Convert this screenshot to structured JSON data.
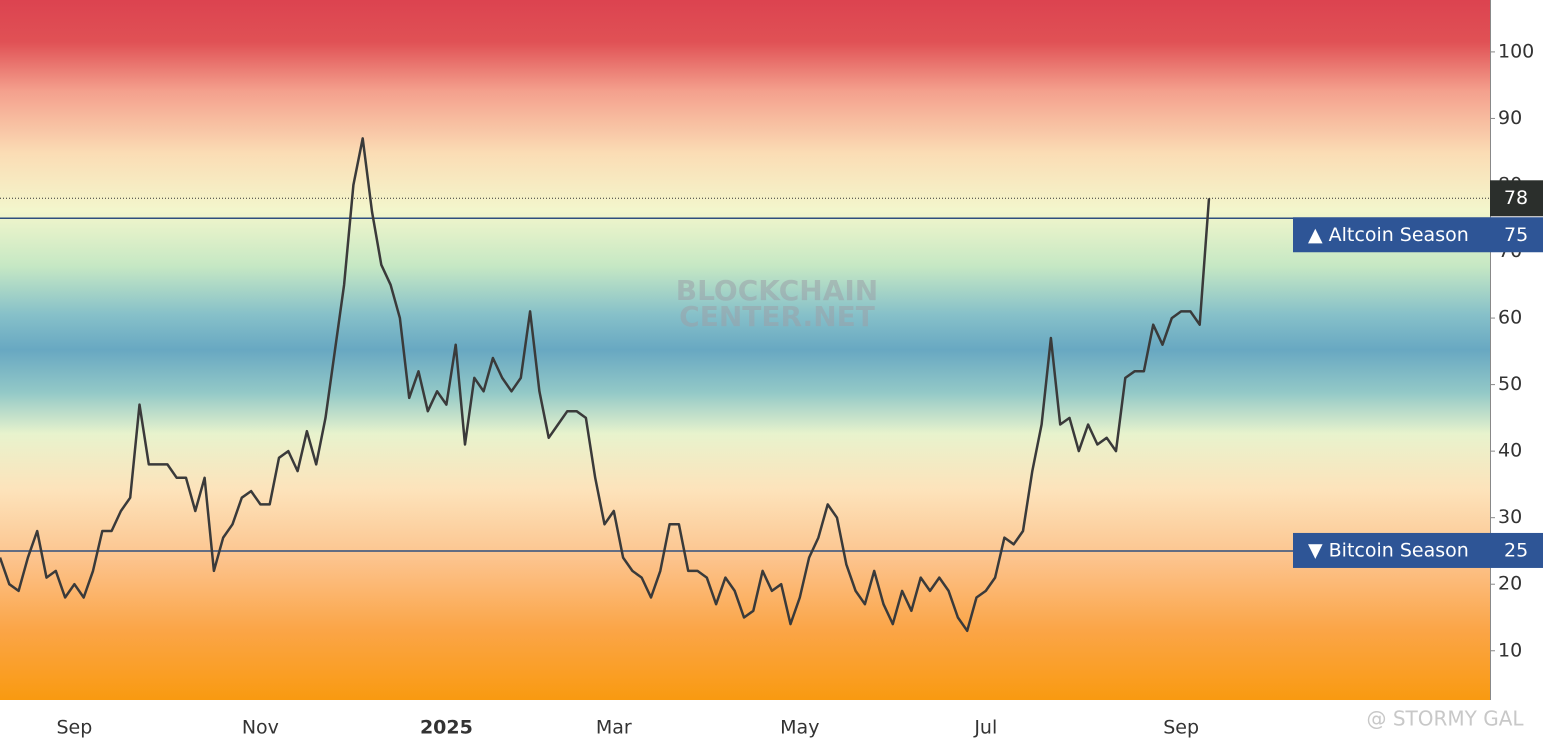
{
  "chart_data": {
    "type": "line",
    "categories": [
      null,
      null,
      null,
      null,
      null,
      null,
      null,
      null,
      "Sep",
      null,
      null,
      null,
      null,
      null,
      null,
      null,
      null,
      null,
      null,
      null,
      null,
      null,
      null,
      null,
      null,
      null,
      null,
      null,
      "Nov",
      null,
      null,
      null,
      null,
      null,
      null,
      null,
      null,
      null,
      null,
      null,
      null,
      null,
      null,
      null,
      null,
      null,
      null,
      null,
      "2025",
      null,
      null,
      null,
      null,
      null,
      null,
      null,
      null,
      null,
      null,
      null,
      null,
      null,
      null,
      null,
      null,
      null,
      "Mar",
      null,
      null,
      null,
      null,
      null,
      null,
      null,
      null,
      null,
      null,
      null,
      null,
      null,
      null,
      null,
      null,
      null,
      null,
      null,
      "May",
      null,
      null,
      null,
      null,
      null,
      null,
      null,
      null,
      null,
      null,
      null,
      null,
      null,
      null,
      null,
      null,
      null,
      null,
      null,
      "Jul",
      null,
      null,
      null,
      null,
      null,
      null,
      null,
      null,
      null,
      null,
      null,
      null,
      null,
      null,
      null,
      null,
      null,
      null,
      null,
      null,
      "Sep",
      null,
      null,
      null
    ],
    "values": [
      24,
      20,
      19,
      24,
      28,
      21,
      22,
      18,
      20,
      18,
      22,
      28,
      28,
      31,
      33,
      47,
      38,
      38,
      38,
      36,
      36,
      31,
      36,
      22,
      27,
      29,
      33,
      34,
      32,
      32,
      39,
      40,
      37,
      43,
      38,
      45,
      55,
      65,
      80,
      87,
      76,
      68,
      65,
      60,
      48,
      52,
      46,
      49,
      47,
      56,
      41,
      51,
      49,
      54,
      51,
      49,
      51,
      61,
      49,
      42,
      44,
      46,
      46,
      45,
      36,
      29,
      31,
      24,
      22,
      21,
      18,
      22,
      29,
      29,
      22,
      22,
      21,
      17,
      21,
      19,
      15,
      16,
      22,
      19,
      20,
      14,
      18,
      24,
      27,
      32,
      30,
      23,
      19,
      17,
      22,
      17,
      14,
      19,
      16,
      21,
      19,
      21,
      19,
      15,
      13,
      18,
      19,
      21,
      27,
      26,
      28,
      37,
      44,
      57,
      44,
      45,
      40,
      44,
      41,
      42,
      40,
      51,
      52,
      52,
      59,
      56,
      60,
      61,
      61,
      59,
      78
    ],
    "color": "#3a3a3a",
    "ylim": [
      2.6,
      107.8
    ],
    "yticks": [
      10,
      20,
      30,
      40,
      50,
      60,
      70,
      80,
      90,
      100
    ],
    "thresholds": [
      {
        "label": "▲ Altcoin Season",
        "value": 75
      },
      {
        "label": "▼ Bitcoin Season",
        "value": 25
      }
    ],
    "watermark": [
      "BLOCKCHAIN",
      "CENTER.NET"
    ],
    "credit": "@ STORMY GAL"
  }
}
